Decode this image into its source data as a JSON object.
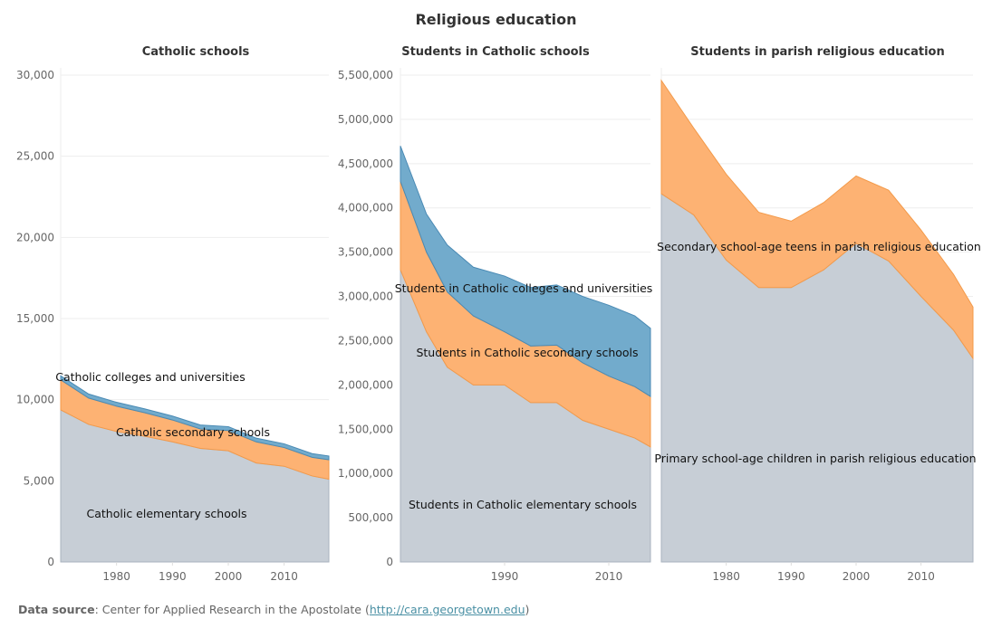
{
  "title": "Religious education",
  "source": {
    "label": "Data source",
    "text": ": Center for Applied Research in the Apostolate (",
    "link": "http://cara.georgetown.edu",
    "close": ")"
  },
  "colors": {
    "base": "#c4cbd4",
    "middle": "#fdae6b",
    "top": "#6aa6c9",
    "middle_line": "#f39a4a",
    "top_line": "#4a8ab4"
  },
  "chart_data": [
    {
      "type": "area",
      "stacked": true,
      "title": "Catholic schools",
      "x": [
        1970,
        1975,
        1980,
        1985,
        1990,
        1995,
        2000,
        2005,
        2010,
        2015,
        2018
      ],
      "xlim": [
        1970,
        2018
      ],
      "xticks": [
        1980,
        1990,
        2000,
        2010
      ],
      "ylim": [
        0,
        30000
      ],
      "yticks": [
        0,
        5000,
        10000,
        15000,
        20000,
        25000,
        30000
      ],
      "ytick_labels": [
        "0",
        "5,000",
        "10,000",
        "15,000",
        "20,000",
        "25,000",
        "30,000"
      ],
      "grid": true,
      "series": [
        {
          "name": "Catholic elementary schools",
          "values": [
            9370,
            8480,
            8040,
            7750,
            7400,
            7000,
            6850,
            6100,
            5900,
            5300,
            5100
          ]
        },
        {
          "name": "Catholic secondary schools",
          "values": [
            1850,
            1620,
            1560,
            1450,
            1350,
            1200,
            1250,
            1300,
            1150,
            1150,
            1200
          ]
        },
        {
          "name": "Catholic colleges and universities",
          "values": [
            250,
            250,
            240,
            240,
            240,
            240,
            240,
            230,
            230,
            230,
            230
          ]
        }
      ],
      "annotations": [
        "Catholic elementary schools",
        "Catholic secondary schools",
        "Catholic colleges and universities"
      ]
    },
    {
      "type": "area",
      "stacked": true,
      "title": "Students in Catholic schools",
      "x": [
        1970,
        1975,
        1979,
        1984,
        1990,
        1995,
        2000,
        2005,
        2010,
        2015,
        2018
      ],
      "xlim": [
        1970,
        2018
      ],
      "xticks": [
        1990,
        2010
      ],
      "ylim": [
        0,
        5500000
      ],
      "yticks": [
        0,
        500000,
        1000000,
        1500000,
        2000000,
        2500000,
        3000000,
        3500000,
        4000000,
        4500000,
        5000000,
        5500000
      ],
      "ytick_labels": [
        "0",
        "500,000",
        "1,000,000",
        "1,500,000",
        "2,000,000",
        "2,500,000",
        "3,000,000",
        "3,500,000",
        "4,000,000",
        "4,500,000",
        "5,000,000",
        "5,500,000"
      ],
      "grid": true,
      "series": [
        {
          "name": "Students in Catholic elementary schools",
          "values": [
            3300000,
            2600000,
            2200000,
            2000000,
            2000000,
            1800000,
            1800000,
            1600000,
            1500000,
            1400000,
            1300000
          ]
        },
        {
          "name": "Students in Catholic secondary schools",
          "values": [
            1000000,
            900000,
            850000,
            780000,
            600000,
            640000,
            650000,
            650000,
            600000,
            580000,
            570000
          ]
        },
        {
          "name": "Students in Catholic colleges and universities",
          "values": [
            400000,
            430000,
            530000,
            550000,
            630000,
            660000,
            680000,
            750000,
            800000,
            800000,
            770000
          ]
        }
      ],
      "annotations": [
        "Students in Catholic elementary schools",
        "Students in Catholic secondary schools",
        "Students in Catholic colleges and universities"
      ]
    },
    {
      "type": "area",
      "stacked": true,
      "title": "Students in parish religious education",
      "x": [
        1970,
        1975,
        1980,
        1985,
        1990,
        1995,
        2000,
        2005,
        2010,
        2015,
        2018
      ],
      "xlim": [
        1970,
        2018
      ],
      "xticks": [
        1980,
        1990,
        2000,
        2010
      ],
      "ylim": [
        0,
        5500000
      ],
      "grid": true,
      "series": [
        {
          "name": "Primary school-age children in parish religious education",
          "values": [
            4160000,
            3920000,
            3410000,
            3100000,
            3100000,
            3300000,
            3600000,
            3400000,
            3000000,
            2620000,
            2300000
          ]
        },
        {
          "name": "Secondary school-age teens in parish religious education",
          "values": [
            1280000,
            980000,
            970000,
            850000,
            750000,
            760000,
            760000,
            800000,
            750000,
            630000,
            580000
          ]
        }
      ],
      "annotations": [
        "Primary school-age children in parish religious education",
        "Secondary school-age teens in parish religious education"
      ]
    }
  ]
}
